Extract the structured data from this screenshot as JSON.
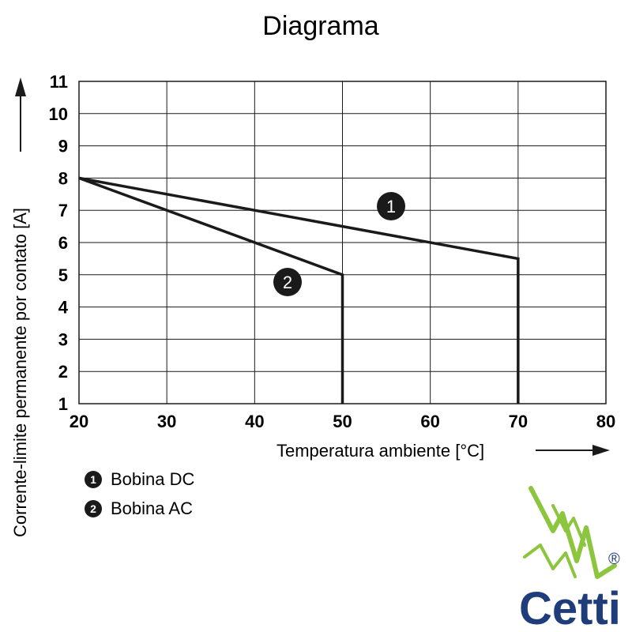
{
  "chart_data": {
    "type": "line",
    "title": "Diagrama",
    "xlabel": "Temperatura ambiente [°C]",
    "ylabel": "Corrente-limite permanente por contato [A]",
    "xlim": [
      20,
      80
    ],
    "ylim": [
      1,
      11
    ],
    "xticks": [
      20,
      30,
      40,
      50,
      60,
      70,
      80
    ],
    "yticks": [
      1,
      2,
      3,
      4,
      5,
      6,
      7,
      8,
      9,
      10,
      11
    ],
    "grid": true,
    "series": [
      {
        "name": "Bobina DC",
        "marker": "1",
        "x": [
          20,
          70,
          70
        ],
        "y": [
          8,
          5.5,
          1
        ]
      },
      {
        "name": "Bobina AC",
        "marker": "2",
        "x": [
          20,
          50,
          50
        ],
        "y": [
          8,
          5,
          1
        ]
      }
    ],
    "legend": [
      {
        "marker": "1",
        "label": "Bobina DC"
      },
      {
        "marker": "2",
        "label": "Bobina AC"
      }
    ]
  },
  "brand": {
    "name": "Cetti",
    "registered": "®",
    "accent_color": "#8cc63f",
    "text_color": "#1f3d7a"
  },
  "colors": {
    "line": "#1a1a1a",
    "grid": "#1a1a1a"
  }
}
